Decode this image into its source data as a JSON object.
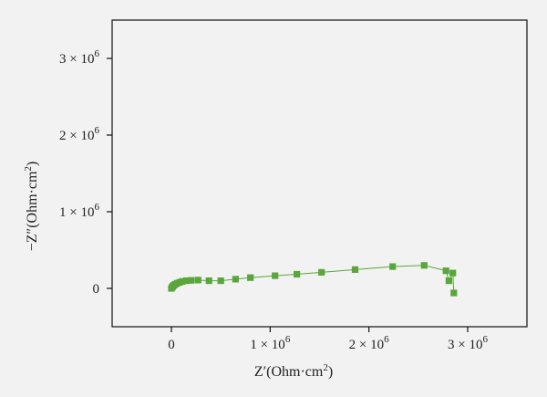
{
  "chart_data": {
    "type": "scatter",
    "xlabel": {
      "base": "Z′(Ohm·cm",
      "sup": "2",
      "tail": ")"
    },
    "ylabel": {
      "base": "−Z″(Ohm·cm",
      "sup": "2",
      "tail": ")"
    },
    "xlim": [
      -600000,
      3600000
    ],
    "ylim": [
      -500000,
      3500000
    ],
    "x_ticks": [
      {
        "value": 0,
        "mantissa": "0",
        "exp": ""
      },
      {
        "value": 1000000,
        "mantissa": "1 × 10",
        "exp": "6"
      },
      {
        "value": 2000000,
        "mantissa": "2 × 10",
        "exp": "6"
      },
      {
        "value": 3000000,
        "mantissa": "3 × 10",
        "exp": "6"
      }
    ],
    "y_ticks": [
      {
        "value": 0,
        "mantissa": "0",
        "exp": ""
      },
      {
        "value": 1000000,
        "mantissa": "1 × 10",
        "exp": "6"
      },
      {
        "value": 2000000,
        "mantissa": "2 × 10",
        "exp": "6"
      },
      {
        "value": 3000000,
        "mantissa": "3 × 10",
        "exp": "6"
      }
    ],
    "grid": false,
    "legend": "none",
    "series": [
      {
        "color": "#5aa63c",
        "marker": "square",
        "line": true,
        "points": [
          [
            0,
            0
          ],
          [
            8000,
            15000
          ],
          [
            15000,
            28000
          ],
          [
            25000,
            40000
          ],
          [
            40000,
            55000
          ],
          [
            60000,
            68000
          ],
          [
            85000,
            80000
          ],
          [
            110000,
            90000
          ],
          [
            150000,
            100000
          ],
          [
            200000,
            105000
          ],
          [
            270000,
            108000
          ],
          [
            380000,
            100000
          ],
          [
            500000,
            100000
          ],
          [
            650000,
            120000
          ],
          [
            800000,
            140000
          ],
          [
            1050000,
            165000
          ],
          [
            1270000,
            185000
          ],
          [
            1520000,
            210000
          ],
          [
            1860000,
            245000
          ],
          [
            2240000,
            285000
          ],
          [
            2560000,
            300000
          ],
          [
            2780000,
            230000
          ],
          [
            2810000,
            100000
          ],
          [
            2850000,
            200000
          ],
          [
            2860000,
            -60000
          ]
        ]
      }
    ]
  }
}
